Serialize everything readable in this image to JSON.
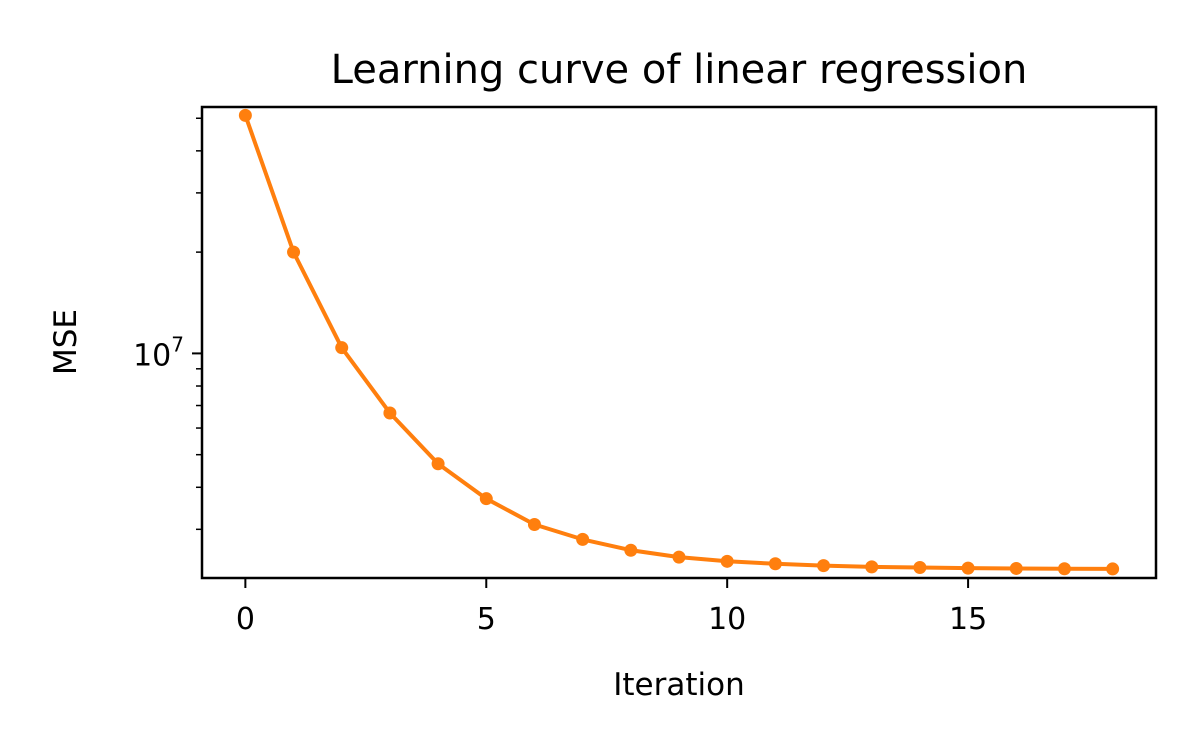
{
  "chart_data": {
    "type": "line",
    "title": "Learning curve of linear regression",
    "xlabel": "Iteration",
    "ylabel": "MSE",
    "yscale": "log",
    "grid": false,
    "legend": "none",
    "xlim": [
      -0.9,
      18.9
    ],
    "ylim": [
      2150000,
      54000000
    ],
    "xticks": [
      0,
      5,
      10,
      15
    ],
    "xtick_labels": [
      "0",
      "5",
      "10",
      "15"
    ],
    "yticks": [
      10000000
    ],
    "ytick_labels": [
      {
        "base": "10",
        "exp": "7"
      }
    ],
    "y_minor_ticks": [
      3000000,
      4000000,
      5000000,
      6000000,
      7000000,
      8000000,
      9000000,
      20000000,
      30000000,
      40000000,
      50000000
    ],
    "series": [
      {
        "color": "#ff7f0e",
        "marker": "circle",
        "x": [
          0,
          1,
          2,
          3,
          4,
          5,
          6,
          7,
          8,
          9,
          10,
          11,
          12,
          13,
          14,
          15,
          16,
          17,
          18
        ],
        "y": [
          51000000,
          20000000,
          10400000,
          6650000,
          4700000,
          3700000,
          3100000,
          2800000,
          2600000,
          2480000,
          2410000,
          2370000,
          2340000,
          2320000,
          2310000,
          2300000,
          2295000,
          2290000,
          2288000
        ]
      }
    ]
  }
}
